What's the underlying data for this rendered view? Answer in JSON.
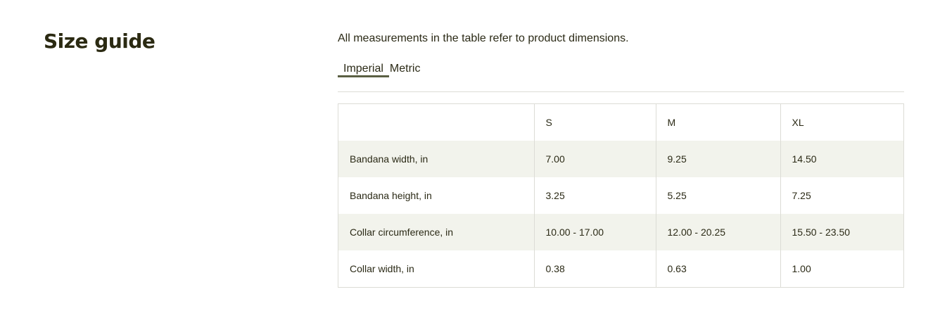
{
  "page": {
    "title": "Size guide",
    "note": "All measurements in the table refer to product dimensions."
  },
  "tabs": [
    {
      "label": "Imperial",
      "active": true
    },
    {
      "label": "Metric",
      "active": false
    }
  ],
  "table": {
    "headers": [
      "",
      "S",
      "M",
      "XL"
    ],
    "rows": [
      {
        "label": "Bandana width, in",
        "values": [
          "7.00",
          "9.25",
          "14.50"
        ]
      },
      {
        "label": "Bandana height, in",
        "values": [
          "3.25",
          "5.25",
          "7.25"
        ]
      },
      {
        "label": "Collar circumference, in",
        "values": [
          "10.00 - 17.00",
          "12.00 - 20.25",
          "15.50 - 23.50"
        ]
      },
      {
        "label": "Collar width, in",
        "values": [
          "0.38",
          "0.63",
          "1.00"
        ]
      }
    ]
  },
  "colors": {
    "text": "#2b2a16",
    "tab_underline": "#5b6043",
    "row_shade": "#f2f3ec",
    "border": "#dcdcd6"
  }
}
